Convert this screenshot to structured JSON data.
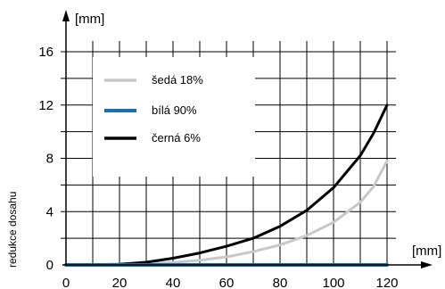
{
  "chart_data": {
    "type": "line",
    "title": "",
    "xlabel": "",
    "ylabel": "redukce dosahu",
    "x_unit": "[mm]",
    "y_unit": "[mm]",
    "xlim": [
      0,
      120
    ],
    "ylim": [
      0,
      16
    ],
    "x_ticks": [
      0,
      20,
      40,
      60,
      80,
      100,
      120
    ],
    "y_ticks": [
      0,
      4,
      8,
      12,
      16
    ],
    "grid": true,
    "legend": "upper-left inside plot",
    "series": [
      {
        "name": "šedá 18%",
        "color": "#c8c8c8",
        "x": [
          0,
          20,
          30,
          40,
          50,
          60,
          70,
          80,
          90,
          100,
          110,
          115,
          120
        ],
        "y": [
          0,
          0.02,
          0.08,
          0.18,
          0.35,
          0.6,
          1.0,
          1.5,
          2.2,
          3.2,
          4.7,
          5.9,
          7.8
        ]
      },
      {
        "name": "bílá 90%",
        "color": "#1a6fb0",
        "x": [
          0,
          20,
          40,
          60,
          80,
          100,
          120
        ],
        "y": [
          0,
          0,
          0,
          0,
          0,
          0,
          0
        ]
      },
      {
        "name": "černá 6%",
        "color": "#000000",
        "x": [
          0,
          20,
          30,
          40,
          50,
          60,
          70,
          80,
          90,
          100,
          110,
          115,
          120
        ],
        "y": [
          0,
          0.05,
          0.2,
          0.5,
          0.9,
          1.4,
          2.0,
          2.9,
          4.1,
          5.8,
          8.2,
          9.9,
          12.0
        ]
      }
    ]
  }
}
